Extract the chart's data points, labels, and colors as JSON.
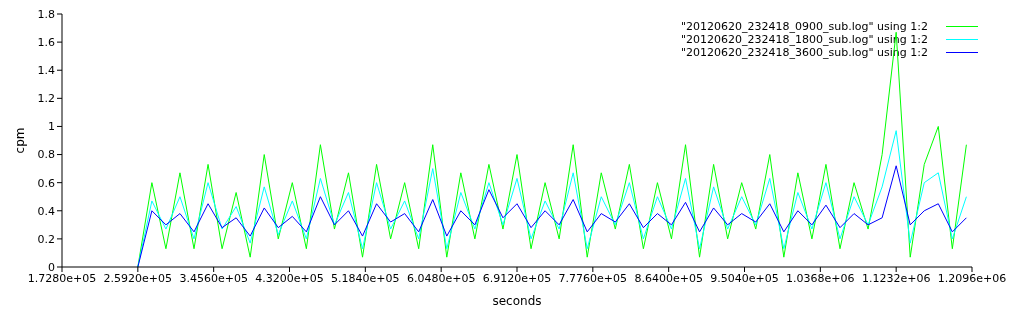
{
  "chart_data": {
    "type": "line",
    "xlabel": "seconds",
    "ylabel": "cpm",
    "x": [
      259200,
      275200,
      291200,
      307200,
      323200,
      339200,
      355200,
      371200,
      387200,
      403200,
      419200,
      435200,
      451200,
      467200,
      483200,
      499200,
      515200,
      531200,
      547200,
      563200,
      579200,
      595200,
      611200,
      627200,
      643200,
      659200,
      675200,
      691200,
      707200,
      723200,
      739200,
      755200,
      771200,
      787200,
      803200,
      819200,
      835200,
      851200,
      867200,
      883200,
      899200,
      915200,
      931200,
      947200,
      963200,
      979200,
      995200,
      1011200,
      1027200,
      1043200,
      1059200,
      1075200,
      1091200,
      1107200,
      1123200,
      1139200,
      1155200,
      1171200,
      1187200,
      1203200
    ],
    "series": [
      {
        "name": "\"20120620_232418_0900_sub.log\" using 1:2",
        "color": "#00ff00",
        "values": [
          0,
          0.6,
          0.13,
          0.67,
          0.13,
          0.73,
          0.13,
          0.53,
          0.07,
          0.8,
          0.2,
          0.6,
          0.13,
          0.87,
          0.27,
          0.67,
          0.07,
          0.73,
          0.2,
          0.6,
          0.13,
          0.87,
          0.07,
          0.67,
          0.2,
          0.73,
          0.27,
          0.8,
          0.13,
          0.6,
          0.2,
          0.87,
          0.07,
          0.67,
          0.27,
          0.73,
          0.13,
          0.6,
          0.2,
          0.87,
          0.07,
          0.73,
          0.2,
          0.6,
          0.27,
          0.8,
          0.07,
          0.67,
          0.2,
          0.73,
          0.13,
          0.6,
          0.27,
          0.8,
          1.67,
          0.07,
          0.73,
          1.0,
          0.13,
          0.87
        ]
      },
      {
        "name": "\"20120620_232418_1800_sub.log\" using 1:2",
        "color": "#00ffff",
        "values": [
          0,
          0.47,
          0.27,
          0.5,
          0.2,
          0.6,
          0.27,
          0.43,
          0.17,
          0.57,
          0.23,
          0.47,
          0.2,
          0.63,
          0.3,
          0.53,
          0.13,
          0.6,
          0.27,
          0.47,
          0.2,
          0.7,
          0.13,
          0.53,
          0.27,
          0.6,
          0.3,
          0.63,
          0.2,
          0.47,
          0.27,
          0.67,
          0.13,
          0.5,
          0.3,
          0.6,
          0.2,
          0.5,
          0.27,
          0.63,
          0.13,
          0.57,
          0.27,
          0.5,
          0.3,
          0.63,
          0.13,
          0.53,
          0.27,
          0.6,
          0.2,
          0.5,
          0.3,
          0.57,
          0.97,
          0.17,
          0.6,
          0.67,
          0.2,
          0.5
        ]
      },
      {
        "name": "\"20120620_232418_3600_sub.log\" using 1:2",
        "color": "#0000ff",
        "values": [
          0,
          0.4,
          0.3,
          0.38,
          0.25,
          0.45,
          0.28,
          0.35,
          0.22,
          0.42,
          0.28,
          0.36,
          0.25,
          0.5,
          0.3,
          0.4,
          0.22,
          0.45,
          0.32,
          0.38,
          0.25,
          0.48,
          0.22,
          0.4,
          0.3,
          0.55,
          0.35,
          0.45,
          0.28,
          0.4,
          0.3,
          0.48,
          0.25,
          0.38,
          0.32,
          0.45,
          0.28,
          0.38,
          0.3,
          0.46,
          0.25,
          0.42,
          0.3,
          0.38,
          0.32,
          0.45,
          0.25,
          0.4,
          0.3,
          0.44,
          0.28,
          0.38,
          0.3,
          0.35,
          0.72,
          0.3,
          0.4,
          0.45,
          0.25,
          0.35
        ]
      }
    ],
    "xlim": [
      172800,
      1209600
    ],
    "xticks": [
      {
        "value": 172800,
        "label": "1.7280e+05"
      },
      {
        "value": 259200,
        "label": "2.5920e+05"
      },
      {
        "value": 345600,
        "label": "3.4560e+05"
      },
      {
        "value": 432000,
        "label": "4.3200e+05"
      },
      {
        "value": 518400,
        "label": "5.1840e+05"
      },
      {
        "value": 604800,
        "label": "6.0480e+05"
      },
      {
        "value": 691200,
        "label": "6.9120e+05"
      },
      {
        "value": 777600,
        "label": "7.7760e+05"
      },
      {
        "value": 864000,
        "label": "8.6400e+05"
      },
      {
        "value": 950400,
        "label": "9.5040e+05"
      },
      {
        "value": 1036800,
        "label": "1.0368e+06"
      },
      {
        "value": 1123200,
        "label": "1.1232e+06"
      },
      {
        "value": 1209600,
        "label": "1.2096e+06"
      }
    ],
    "ylim": [
      0,
      1.8
    ],
    "yticks": [
      0,
      0.2,
      0.4,
      0.6,
      0.8,
      1,
      1.2,
      1.4,
      1.6,
      1.8
    ],
    "legend": "top right",
    "marker": "none",
    "line_style": "solid"
  }
}
